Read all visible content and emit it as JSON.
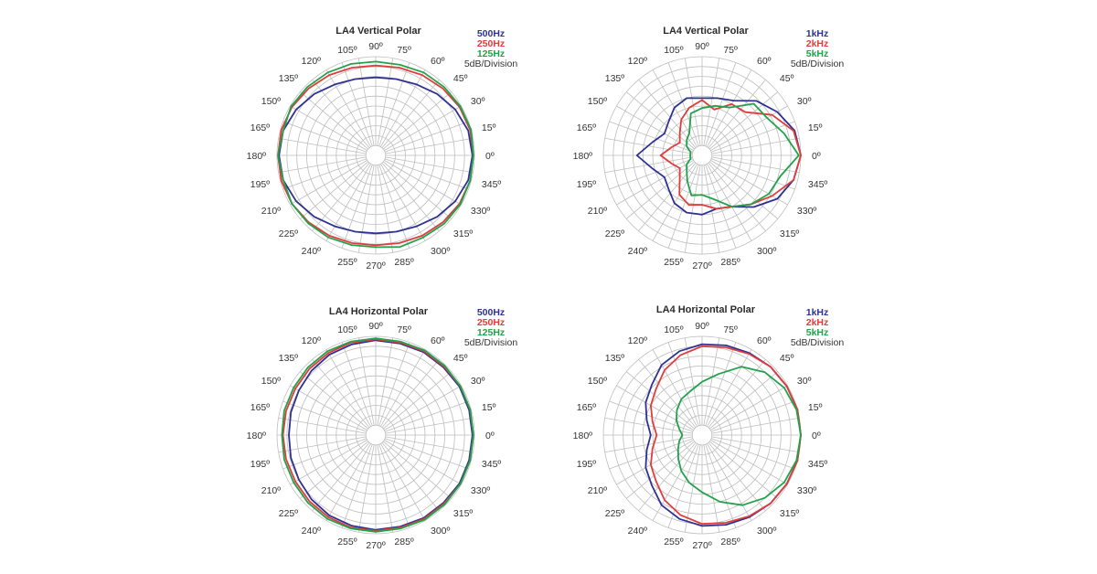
{
  "chart_data": [
    {
      "type": "polar",
      "title": "LA4 Vertical Polar",
      "division_label": "5dB/Division",
      "angle_labels": [
        "0º",
        "15º",
        "30º",
        "45º",
        "60º",
        "75º",
        "90º",
        "105º",
        "120º",
        "135º",
        "150º",
        "165º",
        "180º",
        "195º",
        "210º",
        "225º",
        "240º",
        "255º",
        "270º",
        "285º",
        "300º",
        "315º",
        "330º",
        "345º"
      ],
      "angles_deg": [
        0,
        15,
        30,
        45,
        60,
        75,
        90,
        105,
        120,
        135,
        150,
        165,
        180,
        195,
        210,
        225,
        240,
        255,
        270,
        285,
        300,
        315,
        330,
        345
      ],
      "rings": 10,
      "rmax_db": 0,
      "rmin_db": -50,
      "series": [
        {
          "name": "500Hz",
          "color": "#2e3192",
          "values_db": [
            -1,
            -1.5,
            -3.5,
            -6,
            -8.5,
            -10,
            -10.5,
            -10,
            -8.5,
            -6,
            -3.5,
            -1.5,
            -1,
            -1.5,
            -3.5,
            -6,
            -8.5,
            -10,
            -10.5,
            -10,
            -8.5,
            -6,
            -3.5,
            -1.5
          ]
        },
        {
          "name": "250Hz",
          "color": "#e03c3c",
          "values_db": [
            -0.5,
            -0.5,
            -1,
            -2,
            -3,
            -4,
            -4.5,
            -4,
            -3,
            -2,
            -1,
            -0.5,
            -0.5,
            -0.5,
            -1,
            -2,
            -3,
            -4,
            -4.5,
            -4,
            -3,
            -2,
            -1,
            -0.5
          ]
        },
        {
          "name": "125Hz",
          "color": "#21a24a",
          "values_db": [
            -0.5,
            0,
            -0.5,
            -1,
            -1.5,
            -2.5,
            -2.5,
            -2,
            -1.5,
            -1,
            -0.5,
            -1.5,
            -0.5,
            -1.5,
            -1,
            -1.5,
            -2,
            -3,
            -3.5,
            -2,
            -2,
            -1,
            -0.5,
            -0.5
          ]
        }
      ]
    },
    {
      "type": "polar",
      "title": "LA4 Vertical Polar",
      "division_label": "5dB/Division",
      "angle_labels": [
        "0º",
        "15º",
        "30º",
        "45º",
        "60º",
        "75º",
        "90º",
        "105º",
        "120º",
        "135º",
        "150º",
        "165º",
        "180º",
        "195º",
        "210º",
        "225º",
        "240º",
        "255º",
        "270º",
        "285º",
        "300º",
        "315º",
        "330º",
        "345º"
      ],
      "angles_deg": [
        0,
        15,
        30,
        45,
        60,
        75,
        90,
        105,
        120,
        135,
        150,
        165,
        180,
        195,
        210,
        225,
        240,
        255,
        270,
        285,
        300,
        315,
        330,
        345
      ],
      "rings": 10,
      "rmax_db": 0,
      "rmin_db": -50,
      "series": [
        {
          "name": "1kHz",
          "color": "#2e3192",
          "values_db": [
            0,
            -1.5,
            -6,
            -11,
            -18,
            -20,
            -21,
            -20,
            -22,
            -26,
            -28,
            -24,
            -17,
            -24,
            -28,
            -26,
            -22,
            -20,
            -20,
            -22,
            -20,
            -13,
            -6,
            -2
          ]
        },
        {
          "name": "2kHz",
          "color": "#e03c3c",
          "values_db": [
            0,
            -2,
            -9,
            -19,
            -20,
            -26,
            -22,
            -25,
            -29,
            -34,
            -37,
            -34,
            -29,
            -34,
            -37,
            -34,
            -27,
            -24,
            -25,
            -22,
            -20,
            -15,
            -9,
            -2
          ]
        },
        {
          "name": "5kHz",
          "color": "#21a24a",
          "values_db": [
            -1,
            -7,
            -12,
            -13,
            -22,
            -24,
            -26,
            -28,
            -37,
            -39,
            -41,
            -44,
            -44,
            -44,
            -41,
            -39,
            -35,
            -29,
            -30,
            -27,
            -20,
            -15,
            -11,
            -9
          ]
        }
      ]
    },
    {
      "type": "polar",
      "title": "LA4 Horizontal Polar",
      "division_label": "5dB/Division",
      "angle_labels": [
        "0º",
        "15º",
        "30º",
        "45º",
        "60º",
        "75º",
        "90º",
        "105º",
        "120º",
        "135º",
        "150º",
        "165º",
        "180º",
        "195º",
        "210º",
        "225º",
        "240º",
        "255º",
        "270º",
        "285º",
        "300º",
        "315º",
        "330º",
        "345º"
      ],
      "angles_deg": [
        0,
        15,
        30,
        45,
        60,
        75,
        90,
        105,
        120,
        135,
        150,
        165,
        180,
        195,
        210,
        225,
        240,
        255,
        270,
        285,
        300,
        315,
        330,
        345
      ],
      "rings": 10,
      "rmax_db": 0,
      "rmin_db": -50,
      "series": [
        {
          "name": "500Hz",
          "color": "#2e3192",
          "values_db": [
            -1,
            -1,
            -1,
            -1.5,
            -1.5,
            -2,
            -2,
            -2.5,
            -3,
            -4,
            -5,
            -5.5,
            -6,
            -5.5,
            -5,
            -4,
            -3,
            -2.5,
            -2,
            -2,
            -1.5,
            -1.5,
            -1,
            -1
          ]
        },
        {
          "name": "250Hz",
          "color": "#e03c3c",
          "values_db": [
            -0.5,
            -0.5,
            -0.5,
            -1,
            -1,
            -1.5,
            -1.5,
            -1.5,
            -2,
            -2.5,
            -3,
            -3,
            -3,
            -3,
            -3,
            -2.5,
            -2,
            -1.5,
            -1.5,
            -1.5,
            -1,
            -1,
            -0.5,
            -0.5
          ]
        },
        {
          "name": "125Hz",
          "color": "#21a24a",
          "values_db": [
            -0.5,
            -0.5,
            -0.5,
            -0.5,
            -0.5,
            -1,
            -1,
            -1,
            -1,
            -1.5,
            -2,
            -2,
            -2.5,
            -2,
            -2,
            -1.5,
            -1,
            -1,
            -1,
            -1,
            -0.5,
            -0.5,
            -0.5,
            -0.5
          ]
        }
      ]
    },
    {
      "type": "polar",
      "title": "LA4 Horizontal Polar",
      "division_label": "5dB/Division",
      "angle_labels": [
        "0º",
        "15º",
        "30º",
        "45º",
        "60º",
        "75º",
        "90º",
        "105º",
        "120º",
        "135º",
        "150º",
        "165º",
        "180º",
        "195º",
        "210º",
        "225º",
        "240º",
        "255º",
        "270º",
        "285º",
        "300º",
        "315º",
        "330º",
        "345º"
      ],
      "angles_deg": [
        0,
        15,
        30,
        45,
        60,
        75,
        90,
        105,
        120,
        135,
        150,
        165,
        180,
        195,
        210,
        225,
        240,
        255,
        270,
        285,
        300,
        315,
        330,
        345
      ],
      "rings": 10,
      "rmax_db": 0,
      "rmin_db": -50,
      "series": [
        {
          "name": "1kHz",
          "color": "#2e3192",
          "values_db": [
            0,
            0,
            -0.5,
            -1,
            -2,
            -3,
            -4,
            -6,
            -9,
            -14,
            -17,
            -21,
            -24,
            -21,
            -17,
            -14,
            -9,
            -6,
            -4,
            -3,
            -2,
            -1,
            -0.5,
            0
          ]
        },
        {
          "name": "2kHz",
          "color": "#e03c3c",
          "values_db": [
            0,
            0,
            -0.5,
            -1,
            -2.5,
            -4,
            -5,
            -8,
            -12,
            -17,
            -20,
            -24,
            -27,
            -24,
            -20,
            -17,
            -12,
            -8,
            -5,
            -4,
            -2.5,
            -1,
            -0.5,
            0
          ]
        },
        {
          "name": "5kHz",
          "color": "#21a24a",
          "values_db": [
            0,
            -0.5,
            -2,
            -5,
            -10,
            -18,
            -23,
            -27,
            -29,
            -32,
            -35,
            -38,
            -40,
            -38,
            -36,
            -33,
            -29,
            -25,
            -21,
            -15,
            -9,
            -5,
            -2,
            -0.5
          ]
        }
      ]
    }
  ]
}
